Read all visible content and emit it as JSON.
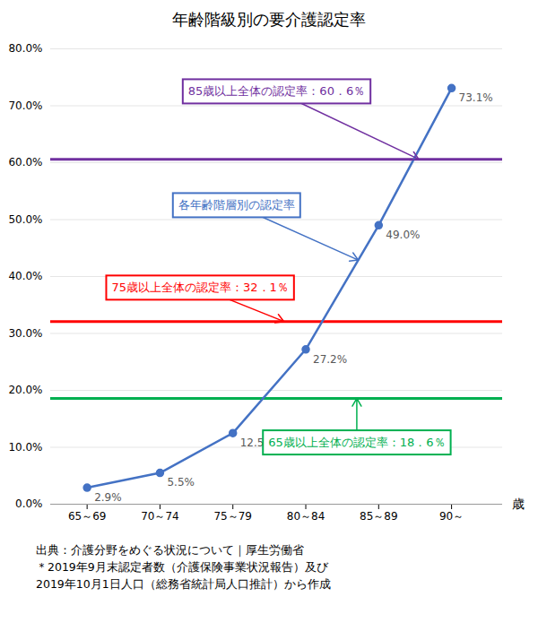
{
  "chart_data": {
    "type": "line",
    "title": "年齢階級別の要介護認定率",
    "categories": [
      "65～69",
      "70～74",
      "75～79",
      "80～84",
      "85～89",
      "90～"
    ],
    "values": [
      2.9,
      5.5,
      12.5,
      27.2,
      49.0,
      73.1
    ],
    "value_labels": [
      "2.9%",
      "5.5%",
      "12.5%",
      "27.2%",
      "49.0%",
      "73.1%"
    ],
    "data_labels": true,
    "color": "#4472C4",
    "marker": "circle",
    "xlabel": "歳",
    "ylim": [
      0,
      80
    ],
    "yticks": [
      {
        "value": 0,
        "label": "0.0%"
      },
      {
        "value": 10,
        "label": "10.0%"
      },
      {
        "value": 20,
        "label": "20.0%"
      },
      {
        "value": 30,
        "label": "30.0%"
      },
      {
        "value": 40,
        "label": "40.0%"
      },
      {
        "value": 50,
        "label": "50.0%"
      },
      {
        "value": 60,
        "label": "60.0%"
      },
      {
        "value": 70,
        "label": "70.0%"
      },
      {
        "value": 80,
        "label": "80.0%"
      }
    ],
    "grid": true,
    "reference_lines": [
      {
        "y": 18.6,
        "color": "#00B050",
        "label": "65歳以上全体の認定率：18．6％"
      },
      {
        "y": 32.1,
        "color": "#FF0000",
        "label": "75歳以上全体の認定率：32．1％"
      },
      {
        "y": 60.6,
        "color": "#7030A0",
        "label": "85歳以上全体の認定率：60．6％"
      }
    ],
    "annotations": [
      {
        "text": "各年齢階層別の認定率",
        "color": "#4472C4"
      }
    ],
    "source": [
      "出典：介護分野をめぐる状況について｜厚生労働省",
      "＊2019年9月末認定者数（介護保険事業状況報告）及び",
      "2019年10月1日人口（総務省統計局人口推計）から作成"
    ]
  }
}
